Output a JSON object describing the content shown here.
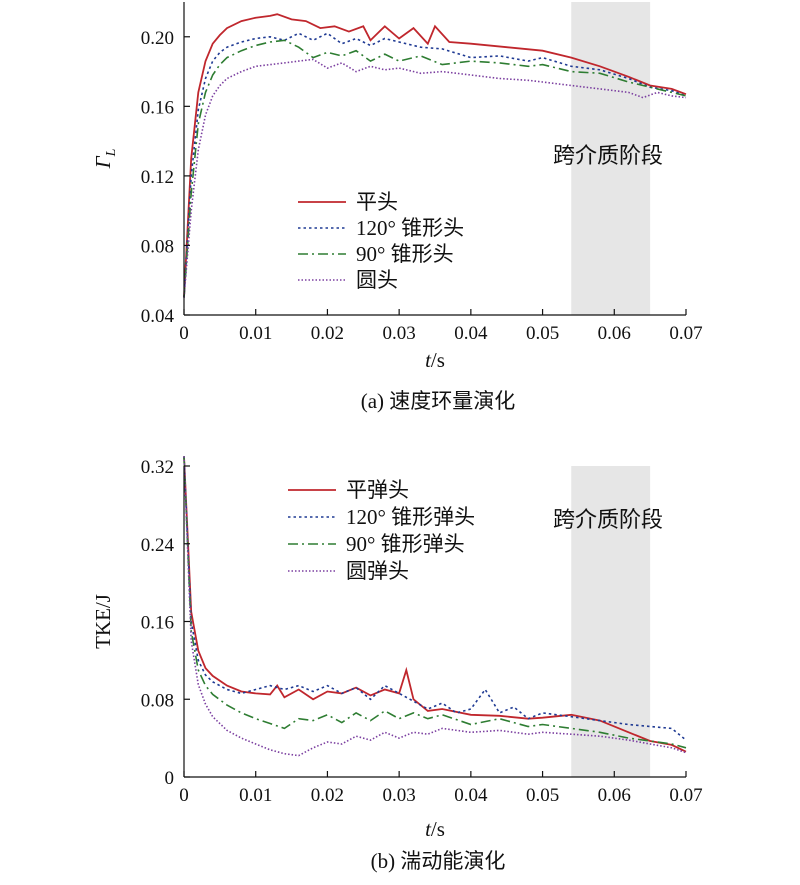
{
  "chart_data": [
    {
      "type": "line",
      "caption": "(a) 速度环量演化",
      "xlabel": "t/s",
      "ylabel": "Γ_L",
      "ylabel_main": "Γ",
      "ylabel_sub": "L",
      "xlim": [
        0,
        0.07
      ],
      "ylim": [
        0.04,
        0.22
      ],
      "xticks": [
        "0",
        "0.01",
        "0.02",
        "0.03",
        "0.04",
        "0.05",
        "0.06",
        "0.07"
      ],
      "yticks": [
        "0.04",
        "0.08",
        "0.12",
        "0.16",
        "0.20"
      ],
      "shaded_region": {
        "x": [
          0.054,
          0.065
        ],
        "label": "跨介质阶段"
      },
      "legend_placement": "center-left",
      "series": [
        {
          "name": "平头",
          "color": "#c0272d",
          "style": "solid",
          "x": [
            0,
            0.001,
            0.002,
            0.003,
            0.004,
            0.005,
            0.006,
            0.008,
            0.01,
            0.012,
            0.013,
            0.015,
            0.017,
            0.019,
            0.021,
            0.023,
            0.025,
            0.026,
            0.028,
            0.03,
            0.032,
            0.034,
            0.035,
            0.037,
            0.04,
            0.045,
            0.05,
            0.054,
            0.058,
            0.062,
            0.065,
            0.068,
            0.07
          ],
          "y": [
            0.05,
            0.13,
            0.168,
            0.186,
            0.196,
            0.201,
            0.205,
            0.209,
            0.211,
            0.212,
            0.213,
            0.21,
            0.209,
            0.205,
            0.206,
            0.203,
            0.206,
            0.198,
            0.206,
            0.199,
            0.205,
            0.196,
            0.206,
            0.197,
            0.196,
            0.194,
            0.192,
            0.188,
            0.183,
            0.177,
            0.172,
            0.17,
            0.167
          ]
        },
        {
          "name": "120° 锥形头",
          "color": "#1f3a93",
          "style": "dotted",
          "x": [
            0,
            0.001,
            0.002,
            0.003,
            0.004,
            0.005,
            0.006,
            0.008,
            0.01,
            0.012,
            0.014,
            0.016,
            0.018,
            0.02,
            0.022,
            0.024,
            0.026,
            0.028,
            0.03,
            0.033,
            0.036,
            0.04,
            0.044,
            0.048,
            0.05,
            0.054,
            0.058,
            0.062,
            0.065,
            0.068,
            0.07
          ],
          "y": [
            0.05,
            0.12,
            0.158,
            0.176,
            0.186,
            0.191,
            0.194,
            0.197,
            0.199,
            0.2,
            0.198,
            0.202,
            0.198,
            0.202,
            0.196,
            0.199,
            0.195,
            0.199,
            0.197,
            0.194,
            0.193,
            0.188,
            0.189,
            0.186,
            0.188,
            0.183,
            0.181,
            0.176,
            0.171,
            0.169,
            0.166
          ]
        },
        {
          "name": "90° 锥形头",
          "color": "#2e7d32",
          "style": "dashdot",
          "x": [
            0,
            0.001,
            0.002,
            0.003,
            0.004,
            0.005,
            0.006,
            0.008,
            0.01,
            0.012,
            0.014,
            0.016,
            0.018,
            0.02,
            0.022,
            0.024,
            0.026,
            0.028,
            0.03,
            0.033,
            0.036,
            0.04,
            0.044,
            0.048,
            0.05,
            0.054,
            0.058,
            0.062,
            0.065,
            0.068,
            0.07
          ],
          "y": [
            0.05,
            0.11,
            0.15,
            0.168,
            0.178,
            0.184,
            0.188,
            0.192,
            0.195,
            0.197,
            0.198,
            0.194,
            0.188,
            0.191,
            0.189,
            0.192,
            0.186,
            0.19,
            0.186,
            0.189,
            0.184,
            0.186,
            0.185,
            0.183,
            0.184,
            0.18,
            0.179,
            0.174,
            0.171,
            0.168,
            0.166
          ]
        },
        {
          "name": "圆头",
          "color": "#7b3fa0",
          "style": "dotted-fine",
          "x": [
            0,
            0.001,
            0.002,
            0.003,
            0.004,
            0.005,
            0.006,
            0.008,
            0.01,
            0.012,
            0.014,
            0.016,
            0.018,
            0.02,
            0.022,
            0.024,
            0.026,
            0.028,
            0.03,
            0.033,
            0.036,
            0.04,
            0.044,
            0.048,
            0.05,
            0.054,
            0.058,
            0.062,
            0.064,
            0.066,
            0.068,
            0.07
          ],
          "y": [
            0.05,
            0.1,
            0.135,
            0.155,
            0.166,
            0.172,
            0.176,
            0.18,
            0.183,
            0.184,
            0.185,
            0.186,
            0.187,
            0.182,
            0.185,
            0.18,
            0.183,
            0.181,
            0.182,
            0.179,
            0.18,
            0.178,
            0.176,
            0.175,
            0.174,
            0.172,
            0.17,
            0.168,
            0.165,
            0.168,
            0.166,
            0.165
          ]
        }
      ]
    },
    {
      "type": "line",
      "caption": "(b) 湍动能演化",
      "xlabel": "t/s",
      "ylabel": "TKE/J",
      "xlim": [
        0,
        0.07
      ],
      "ylim": [
        0,
        0.32
      ],
      "xticks": [
        "0",
        "0.01",
        "0.02",
        "0.03",
        "0.04",
        "0.05",
        "0.06",
        "0.07"
      ],
      "yticks": [
        "0",
        "0.08",
        "0.16",
        "0.24",
        "0.32"
      ],
      "shaded_region": {
        "x": [
          0.054,
          0.065
        ],
        "label": "跨介质阶段"
      },
      "legend_placement": "top-center",
      "series": [
        {
          "name": "平弹头",
          "color": "#c0272d",
          "style": "solid",
          "x": [
            0,
            0.001,
            0.002,
            0.003,
            0.004,
            0.006,
            0.008,
            0.01,
            0.012,
            0.013,
            0.014,
            0.016,
            0.018,
            0.02,
            0.022,
            0.024,
            0.026,
            0.028,
            0.03,
            0.031,
            0.032,
            0.034,
            0.036,
            0.04,
            0.044,
            0.048,
            0.05,
            0.054,
            0.058,
            0.062,
            0.065,
            0.068,
            0.07
          ],
          "y": [
            0.33,
            0.17,
            0.13,
            0.112,
            0.104,
            0.094,
            0.088,
            0.086,
            0.085,
            0.094,
            0.082,
            0.09,
            0.08,
            0.088,
            0.086,
            0.092,
            0.084,
            0.09,
            0.086,
            0.11,
            0.08,
            0.068,
            0.07,
            0.064,
            0.063,
            0.06,
            0.061,
            0.064,
            0.058,
            0.046,
            0.037,
            0.033,
            0.026
          ]
        },
        {
          "name": "120° 锥形弹头",
          "color": "#1f3a93",
          "style": "dotted",
          "x": [
            0,
            0.001,
            0.002,
            0.003,
            0.004,
            0.006,
            0.008,
            0.01,
            0.012,
            0.014,
            0.016,
            0.018,
            0.02,
            0.022,
            0.024,
            0.026,
            0.028,
            0.03,
            0.032,
            0.034,
            0.036,
            0.038,
            0.04,
            0.042,
            0.044,
            0.046,
            0.048,
            0.05,
            0.054,
            0.058,
            0.062,
            0.065,
            0.068,
            0.07
          ],
          "y": [
            0.33,
            0.16,
            0.12,
            0.105,
            0.098,
            0.09,
            0.086,
            0.09,
            0.094,
            0.09,
            0.094,
            0.088,
            0.094,
            0.086,
            0.092,
            0.08,
            0.094,
            0.086,
            0.078,
            0.07,
            0.076,
            0.066,
            0.07,
            0.09,
            0.066,
            0.072,
            0.06,
            0.066,
            0.062,
            0.058,
            0.054,
            0.052,
            0.05,
            0.038
          ]
        },
        {
          "name": "90° 锥形弹头",
          "color": "#2e7d32",
          "style": "dashdot",
          "x": [
            0,
            0.001,
            0.002,
            0.003,
            0.004,
            0.006,
            0.008,
            0.01,
            0.012,
            0.014,
            0.016,
            0.018,
            0.02,
            0.022,
            0.024,
            0.026,
            0.028,
            0.03,
            0.032,
            0.034,
            0.036,
            0.04,
            0.044,
            0.048,
            0.05,
            0.054,
            0.058,
            0.062,
            0.065,
            0.068,
            0.07
          ],
          "y": [
            0.33,
            0.15,
            0.11,
            0.094,
            0.085,
            0.074,
            0.066,
            0.06,
            0.055,
            0.05,
            0.06,
            0.058,
            0.064,
            0.056,
            0.066,
            0.058,
            0.068,
            0.06,
            0.066,
            0.06,
            0.064,
            0.054,
            0.06,
            0.052,
            0.054,
            0.05,
            0.046,
            0.04,
            0.037,
            0.034,
            0.03
          ]
        },
        {
          "name": "圆弹头",
          "color": "#7b3fa0",
          "style": "dotted-fine",
          "x": [
            0,
            0.001,
            0.002,
            0.003,
            0.004,
            0.006,
            0.008,
            0.01,
            0.012,
            0.014,
            0.016,
            0.018,
            0.02,
            0.022,
            0.024,
            0.026,
            0.028,
            0.03,
            0.032,
            0.034,
            0.036,
            0.04,
            0.044,
            0.048,
            0.05,
            0.054,
            0.058,
            0.062,
            0.065,
            0.068,
            0.07
          ],
          "y": [
            0.33,
            0.14,
            0.095,
            0.075,
            0.062,
            0.048,
            0.04,
            0.034,
            0.028,
            0.024,
            0.022,
            0.03,
            0.036,
            0.034,
            0.042,
            0.038,
            0.046,
            0.04,
            0.046,
            0.044,
            0.05,
            0.046,
            0.048,
            0.044,
            0.046,
            0.044,
            0.042,
            0.038,
            0.034,
            0.03,
            0.025
          ]
        }
      ]
    }
  ]
}
